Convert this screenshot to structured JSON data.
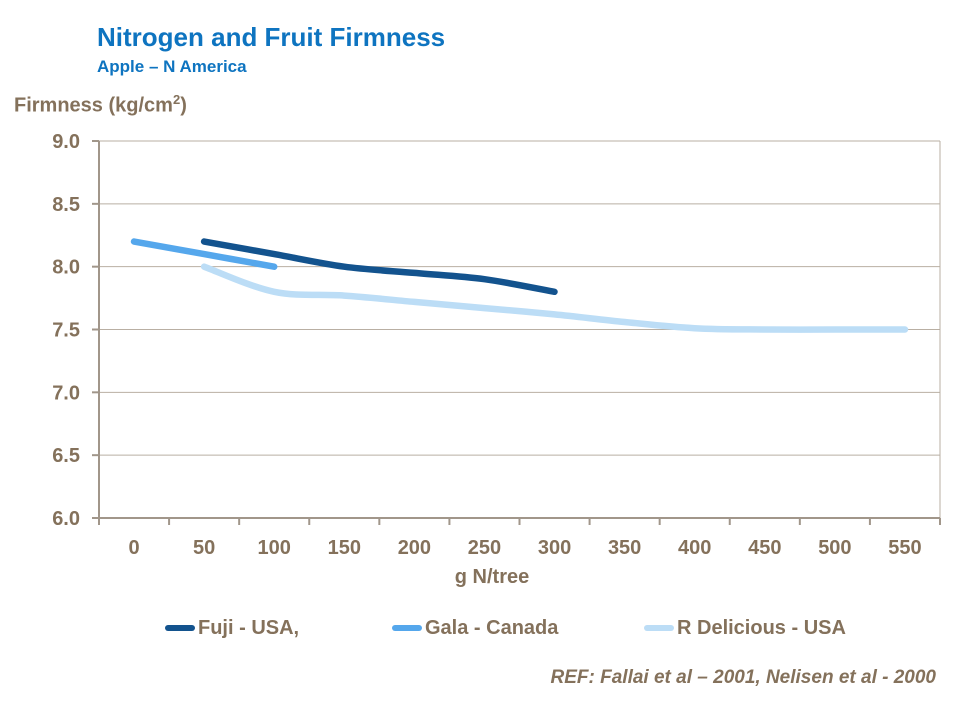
{
  "header": {
    "title": "Nitrogen and Fruit Firmness",
    "subtitle": "Apple – N America"
  },
  "colors": {
    "title_blue": "#0e74c0",
    "text_brown": "#84715b",
    "axis": "#a1968a",
    "gridline": "#b9afa3",
    "fuji": "#13538e",
    "gala": "#55a7ec",
    "r_delicious": "#bcddf6"
  },
  "chart_data": {
    "type": "line",
    "title": "Nitrogen and Fruit Firmness",
    "subtitle": "Apple – N America",
    "y_axis_title": {
      "prefix": "Firmness (kg/cm",
      "sup": "2",
      "suffix": ")"
    },
    "xlabel": "g N/tree",
    "x_ticks": [
      0,
      50,
      100,
      150,
      200,
      250,
      300,
      350,
      400,
      450,
      500,
      550
    ],
    "ylim": [
      6.0,
      9.0
    ],
    "y_tick_step": 0.5,
    "grid": true,
    "legend_position": "bottom",
    "series": [
      {
        "name": "Fuji - USA,",
        "color_key": "fuji",
        "points": [
          [
            50,
            8.2
          ],
          [
            100,
            8.1
          ],
          [
            150,
            8.0
          ],
          [
            200,
            7.95
          ],
          [
            250,
            7.9
          ],
          [
            300,
            7.8
          ]
        ]
      },
      {
        "name": "Gala - Canada",
        "color_key": "gala",
        "points": [
          [
            0,
            8.2
          ],
          [
            50,
            8.1
          ],
          [
            100,
            8.0
          ]
        ]
      },
      {
        "name": "R Delicious - USA",
        "color_key": "r_delicious",
        "points": [
          [
            50,
            8.0
          ],
          [
            100,
            7.8
          ],
          [
            150,
            7.77
          ],
          [
            200,
            7.72
          ],
          [
            250,
            7.67
          ],
          [
            300,
            7.62
          ],
          [
            350,
            7.56
          ],
          [
            400,
            7.51
          ],
          [
            450,
            7.5
          ],
          [
            500,
            7.5
          ],
          [
            550,
            7.5
          ]
        ]
      }
    ]
  },
  "footer": {
    "ref": "REF: Fallai et al – 2001, Nelisen et al - 2000"
  }
}
